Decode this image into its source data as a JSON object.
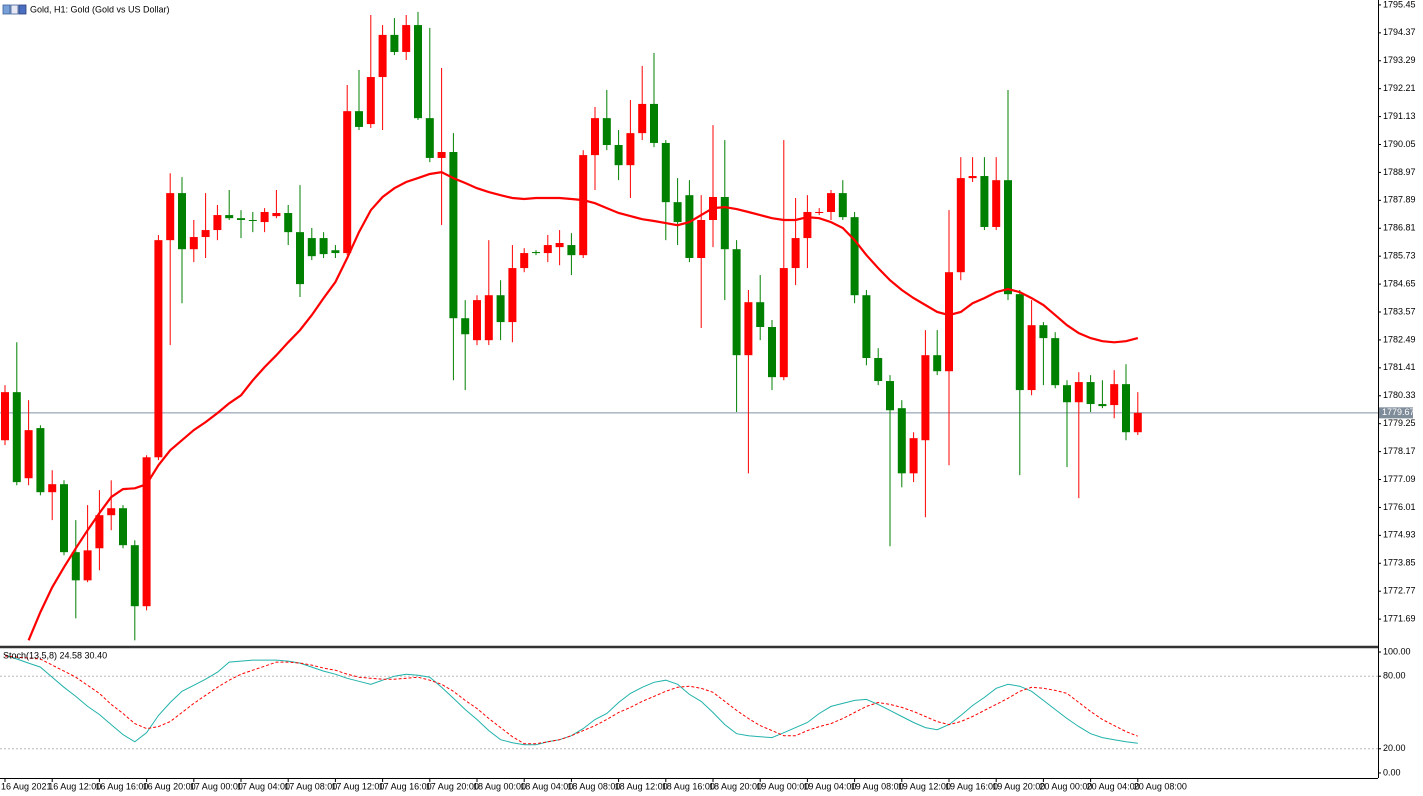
{
  "chart_data": [
    {
      "type": "candlestick",
      "title": "Gold, H1:  Gold (Gold vs US Dollar)",
      "categories": [
        "16 Aug 2021",
        null,
        null,
        null,
        "16 Aug 12:00",
        null,
        null,
        null,
        "16 Aug 16:00",
        null,
        null,
        null,
        "16 Aug 20:00",
        null,
        null,
        null,
        "17 Aug 00:00",
        null,
        null,
        null,
        "17 Aug 04:00",
        null,
        null,
        null,
        "17 Aug 08:00",
        null,
        null,
        null,
        "17 Aug 12:00",
        null,
        null,
        null,
        "17 Aug 16:00",
        null,
        null,
        null,
        "17 Aug 20:00",
        null,
        null,
        null,
        "18 Aug 00:00",
        null,
        null,
        null,
        "18 Aug 04:00",
        null,
        null,
        null,
        "18 Aug 08:00",
        null,
        null,
        null,
        "18 Aug 12:00",
        null,
        null,
        null,
        "18 Aug 16:00",
        null,
        null,
        null,
        "18 Aug 20:00",
        null,
        null,
        null,
        "19 Aug 00:00",
        null,
        null,
        null,
        "19 Aug 04:00",
        null,
        null,
        null,
        "19 Aug 08:00",
        null,
        null,
        null,
        "19 Aug 12:00",
        null,
        null,
        null,
        "19 Aug 16:00",
        null,
        null,
        null,
        "19 Aug 20:00",
        null,
        null,
        null,
        "20 Aug 00:00",
        null,
        null,
        null,
        "20 Aug 04:00",
        null,
        null,
        null,
        "20 Aug 08:00"
      ],
      "open": [
        1778.61,
        1780.47,
        1777.14,
        1779.08,
        1776.6,
        1776.91,
        1774.28,
        1773.19,
        1774.43,
        1775.71,
        1775.98,
        1774.55,
        1772.19,
        1777.95,
        1786.35,
        1788.17,
        1786.0,
        1786.47,
        1786.74,
        1787.32,
        1787.2,
        1787.13,
        1787.05,
        1787.28,
        1787.4,
        1786.66,
        1786.43,
        1786.43,
        1785.96,
        1785.85,
        1791.34,
        1790.84,
        1792.66,
        1794.29,
        1793.63,
        1794.67,
        1791.07,
        1789.53,
        1789.76,
        1783.33,
        1782.48,
        1782.48,
        1784.22,
        1783.18,
        1785.27,
        1785.89,
        1785.85,
        1786.08,
        1786.16,
        1785.77,
        1789.64,
        1791.07,
        1790.03,
        1789.25,
        1790.49,
        1791.62,
        1790.11,
        1787.82,
        1788.09,
        1785.66,
        1787.13,
        1788.02,
        1786.0,
        1781.9,
        1783.95,
        1782.99,
        1781.05,
        1785.27,
        1786.43,
        1787.4,
        1787.44,
        1788.17,
        1787.24,
        1784.22,
        1781.79,
        1780.9,
        1779.85,
        1777.33,
        1778.61,
        1781.9,
        1781.28,
        1785.11,
        1788.75,
        1788.83,
        1786.86,
        1788.67,
        1784.26,
        1780.55,
        1783.06,
        1782.56,
        1780.74,
        1780.08,
        1780.86,
        1780.01,
        1779.97,
        1780.78,
        1778.92
      ],
      "high": [
        1780.74,
        1782.4,
        1780.16,
        1779.19,
        1777.45,
        1777.06,
        1775.52,
        1776.1,
        1776.68,
        1777.06,
        1776.1,
        1774.74,
        1778.03,
        1786.55,
        1788.94,
        1788.79,
        1787.13,
        1788.17,
        1787.71,
        1788.29,
        1787.51,
        1787.44,
        1787.59,
        1788.29,
        1787.71,
        1788.48,
        1786.82,
        1786.66,
        1786.16,
        1792.35,
        1792.93,
        1795.06,
        1794.67,
        1794.94,
        1795.06,
        1795.18,
        1794.56,
        1793.01,
        1790.49,
        1784.03,
        1784.22,
        1786.35,
        1784.8,
        1786.16,
        1786.04,
        1785.96,
        1786.55,
        1786.74,
        1786.62,
        1789.83,
        1791.5,
        1792.16,
        1790.61,
        1791.77,
        1793.09,
        1793.59,
        1790.22,
        1788.75,
        1788.67,
        1788.09,
        1790.8,
        1790.22,
        1786.35,
        1784.42,
        1785.0,
        1783.26,
        1790.22,
        1787.98,
        1788.09,
        1787.59,
        1788.29,
        1788.67,
        1787.44,
        1784.42,
        1782.17,
        1781.13,
        1780.16,
        1778.92,
        1782.87,
        1782.87,
        1787.51,
        1789.56,
        1789.56,
        1789.56,
        1789.56,
        1792.16,
        1784.42,
        1784.03,
        1783.18,
        1782.79,
        1780.93,
        1781.24,
        1781.13,
        1780.93,
        1781.32,
        1781.55,
        1780.47
      ],
      "low": [
        1778.42,
        1776.87,
        1776.87,
        1776.48,
        1775.52,
        1774.16,
        1771.72,
        1773.12,
        1773.58,
        1775.13,
        1774.43,
        1770.87,
        1772.03,
        1777.84,
        1782.29,
        1783.91,
        1785.5,
        1785.66,
        1786.35,
        1787.13,
        1786.43,
        1786.66,
        1786.66,
        1787.2,
        1786.16,
        1784.15,
        1785.58,
        1785.66,
        1785.66,
        1785.77,
        1790.61,
        1790.69,
        1790.61,
        1793.51,
        1793.32,
        1791.0,
        1789.37,
        1786.93,
        1780.93,
        1780.55,
        1782.29,
        1782.29,
        1782.48,
        1782.4,
        1785.11,
        1785.77,
        1785.5,
        1785.38,
        1785.0,
        1785.66,
        1788.29,
        1789.83,
        1788.67,
        1787.98,
        1790.22,
        1789.95,
        1786.35,
        1786.16,
        1785.5,
        1782.95,
        1786.08,
        1784.03,
        1779.7,
        1777.33,
        1782.48,
        1780.55,
        1780.93,
        1784.61,
        1785.27,
        1787.32,
        1787.13,
        1787.13,
        1783.91,
        1781.51,
        1780.74,
        1774.51,
        1776.79,
        1776.99,
        1775.63,
        1781.13,
        1777.64,
        1784.8,
        1788.6,
        1786.74,
        1786.74,
        1784.03,
        1777.26,
        1780.35,
        1780.74,
        1780.62,
        1777.57,
        1776.37,
        1779.7,
        1779.85,
        1779.46,
        1778.61,
        1778.81
      ],
      "close": [
        1780.47,
        1776.99,
        1779.0,
        1776.6,
        1776.91,
        1774.28,
        1773.19,
        1774.35,
        1775.71,
        1775.98,
        1774.55,
        1772.19,
        1777.95,
        1786.35,
        1788.17,
        1786.0,
        1786.47,
        1786.74,
        1787.32,
        1787.2,
        1787.13,
        1787.09,
        1787.44,
        1787.4,
        1786.66,
        1784.65,
        1785.73,
        1785.81,
        1785.85,
        1791.34,
        1790.73,
        1792.66,
        1794.29,
        1793.63,
        1794.67,
        1791.07,
        1789.53,
        1789.76,
        1783.33,
        1782.71,
        1784.03,
        1784.22,
        1783.18,
        1785.27,
        1785.85,
        1785.85,
        1786.16,
        1786.24,
        1785.77,
        1789.64,
        1791.07,
        1790.03,
        1789.25,
        1790.49,
        1791.62,
        1790.11,
        1787.82,
        1787.05,
        1785.66,
        1787.13,
        1788.02,
        1786.0,
        1781.9,
        1783.95,
        1782.99,
        1781.05,
        1785.27,
        1786.43,
        1787.44,
        1787.44,
        1788.17,
        1787.24,
        1784.22,
        1781.79,
        1780.9,
        1779.77,
        1777.33,
        1778.69,
        1781.9,
        1781.28,
        1785.11,
        1788.75,
        1788.83,
        1786.86,
        1788.67,
        1784.26,
        1780.55,
        1783.06,
        1782.56,
        1780.74,
        1780.08,
        1780.86,
        1780.01,
        1779.93,
        1780.78,
        1778.92,
        1779.67
      ],
      "up_color": "#ff0000",
      "down_color": "#008000",
      "series": [
        {
          "color": "#ff0000",
          "values": [
            null,
            null,
            1770.87,
            1771.96,
            1772.92,
            1773.7,
            1774.43,
            1775.13,
            1775.79,
            1776.41,
            1776.72,
            1776.75,
            1776.91,
            1777.64,
            1778.22,
            1778.61,
            1779.0,
            1779.31,
            1779.66,
            1780.04,
            1780.35,
            1780.93,
            1781.44,
            1781.9,
            1782.4,
            1782.87,
            1783.45,
            1784.11,
            1784.73,
            1785.66,
            1786.66,
            1787.51,
            1788.02,
            1788.36,
            1788.6,
            1788.75,
            1788.91,
            1788.98,
            1788.75,
            1788.56,
            1788.36,
            1788.21,
            1788.09,
            1787.98,
            1787.94,
            1787.98,
            1787.98,
            1787.98,
            1787.94,
            1787.9,
            1787.78,
            1787.59,
            1787.4,
            1787.28,
            1787.16,
            1787.09,
            1787.01,
            1786.93,
            1787.05,
            1787.32,
            1787.59,
            1787.63,
            1787.55,
            1787.44,
            1787.32,
            1787.2,
            1787.13,
            1787.13,
            1787.24,
            1787.2,
            1787.05,
            1786.82,
            1786.35,
            1785.77,
            1785.27,
            1784.8,
            1784.42,
            1784.11,
            1783.84,
            1783.57,
            1783.45,
            1783.57,
            1783.91,
            1784.11,
            1784.34,
            1784.46,
            1784.34,
            1784.11,
            1783.84,
            1783.45,
            1783.06,
            1782.75,
            1782.56,
            1782.44,
            1782.4,
            1782.44,
            1782.56
          ]
        }
      ],
      "current_price": 1779.67,
      "ylim": [
        1770.65,
        1795.64
      ],
      "yticks": [
        1795.45,
        1794.37,
        1793.29,
        1792.21,
        1791.13,
        1790.05,
        1788.97,
        1787.89,
        1786.81,
        1785.73,
        1784.65,
        1783.57,
        1782.49,
        1781.41,
        1780.33,
        1779.25,
        1778.17,
        1777.09,
        1776.01,
        1774.93,
        1773.85,
        1772.77,
        1771.69
      ]
    },
    {
      "type": "line",
      "title": "Stoch(13,5,8) 24.58 30.40",
      "series": [
        {
          "color": "#20b2aa",
          "values": [
            97.5,
            94.2,
            90.8,
            87.5,
            79.2,
            70.8,
            63.3,
            55.0,
            48.3,
            40.0,
            31.7,
            25.8,
            33.3,
            47.5,
            58.3,
            67.5,
            72.5,
            77.5,
            83.3,
            91.7,
            92.5,
            93.3,
            93.3,
            93.3,
            92.5,
            90.8,
            87.5,
            84.2,
            81.7,
            78.3,
            75.8,
            73.3,
            76.7,
            80.0,
            81.7,
            80.8,
            79.2,
            70.8,
            61.7,
            52.5,
            44.2,
            35.0,
            27.5,
            25.0,
            23.3,
            23.3,
            25.8,
            27.5,
            30.8,
            36.7,
            44.2,
            49.2,
            58.3,
            65.8,
            70.8,
            75.0,
            76.7,
            73.3,
            65.0,
            59.2,
            50.0,
            40.0,
            32.5,
            30.8,
            30.0,
            29.2,
            33.3,
            37.5,
            41.7,
            49.2,
            55.0,
            57.5,
            60.0,
            60.8,
            56.7,
            51.7,
            46.7,
            41.7,
            37.5,
            35.8,
            40.0,
            47.5,
            55.8,
            62.5,
            70.0,
            73.3,
            71.7,
            67.5,
            60.0,
            52.5,
            45.0,
            38.3,
            32.5,
            29.2,
            27.5,
            25.8,
            24.58
          ]
        },
        {
          "color": "#ff0000",
          "dashed": true,
          "values": [
            96.7,
            95.8,
            95.0,
            94.2,
            89.2,
            84.2,
            79.2,
            72.5,
            65.8,
            56.7,
            49.2,
            40.8,
            36.7,
            38.3,
            42.5,
            50.0,
            57.5,
            64.2,
            70.8,
            76.7,
            81.7,
            85.0,
            88.3,
            91.7,
            91.7,
            90.8,
            89.2,
            86.7,
            85.0,
            81.7,
            79.2,
            78.3,
            77.5,
            77.5,
            78.3,
            79.2,
            76.7,
            73.3,
            67.5,
            60.0,
            53.3,
            45.0,
            37.5,
            30.0,
            24.2,
            24.2,
            25.8,
            27.5,
            30.8,
            35.0,
            39.2,
            44.2,
            50.0,
            54.2,
            59.2,
            63.3,
            67.5,
            70.8,
            71.7,
            70.0,
            66.7,
            59.2,
            51.7,
            45.0,
            39.2,
            35.0,
            30.8,
            30.8,
            35.0,
            38.3,
            40.8,
            45.0,
            50.0,
            55.0,
            58.3,
            56.7,
            54.2,
            50.8,
            46.7,
            42.5,
            40.0,
            42.5,
            46.7,
            51.7,
            56.7,
            61.7,
            67.5,
            70.8,
            70.0,
            68.3,
            65.8,
            58.3,
            50.8,
            44.2,
            39.2,
            34.2,
            30.4
          ]
        }
      ],
      "levels": [
        80,
        20
      ],
      "ylim": [
        -4.17,
        102.5
      ],
      "yticks": [
        {
          "value": 100,
          "label": "100.00"
        },
        {
          "value": 80,
          "label": "80.00"
        },
        {
          "value": 20,
          "label": "20.00"
        },
        {
          "value": 0,
          "label": "0.00"
        }
      ]
    }
  ]
}
